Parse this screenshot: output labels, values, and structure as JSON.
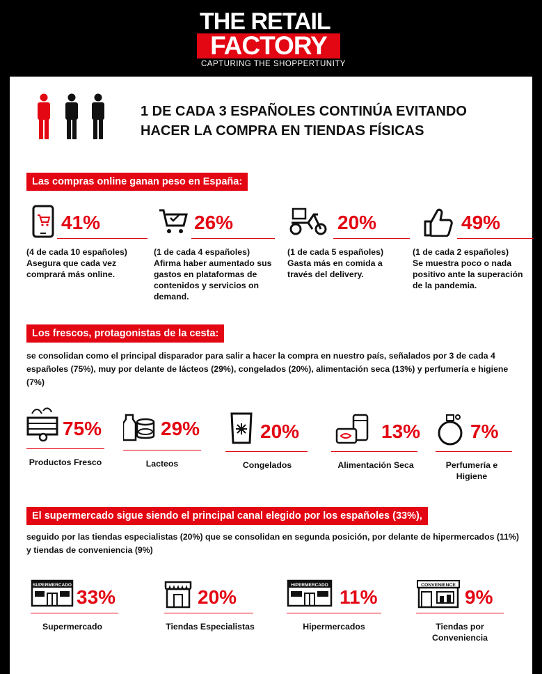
{
  "brand": {
    "line1": "THE RETAIL",
    "line2": "FACTORY",
    "tagline": "CAPTURING THE SHOPPERTUNITY"
  },
  "colors": {
    "accent": "#e30613",
    "dark": "#111111",
    "background": "#ffffff"
  },
  "headline": {
    "line1": "1 DE CADA 3 ESPAÑOLES CONTINÚA EVITANDO",
    "line2": "HACER LA COMPRA EN TIENDAS FÍSICAS",
    "icons": [
      "person-icon-red",
      "person-icon-black",
      "person-icon-black"
    ]
  },
  "online": {
    "title": "Las compras online ganan peso en España:",
    "stats": [
      {
        "icon": "smartphone-cart-icon",
        "pct": "41%",
        "sub": "(4 de cada 10 españoles)",
        "text": "Asegura que cada vez comprará más online."
      },
      {
        "icon": "shopping-cart-check-icon",
        "pct": "26%",
        "sub": "(1 de cada 4 españoles)",
        "text": "Afirma haber aumentado sus gastos en plataformas de contenidos y servicios on demand."
      },
      {
        "icon": "delivery-scooter-icon",
        "pct": "20%",
        "sub": "(1 de cada 5 españoles)",
        "text": "Gasta más en comida a través del delivery."
      },
      {
        "icon": "thumbs-up-icon",
        "pct": "49%",
        "sub": "(1 de cada 2 españoles)",
        "text": "Se muestra poco o nada positivo ante la superación de la pandemia."
      }
    ]
  },
  "fresh": {
    "title": "Los frescos, protagonistas de la cesta:",
    "paragraph": "se consolidan como el principal disparador para salir a hacer la compra en nuestro país, señalados por 3 de cada 4 españoles (75%), muy por delante de lácteos (29%), congelados (20%), alimentación seca (13%) y perfumería e higiene (7%)",
    "stats": [
      {
        "icon": "vegetable-crate-icon",
        "pct": "75%",
        "label": "Productos Fresco"
      },
      {
        "icon": "dairy-icon",
        "pct": "29%",
        "label": "Lacteos"
      },
      {
        "icon": "frozen-bag-icon",
        "pct": "20%",
        "label": "Congelados"
      },
      {
        "icon": "canned-food-icon",
        "pct": "13%",
        "label": "Alimentación Seca"
      },
      {
        "icon": "perfume-bottle-icon",
        "pct": "7%",
        "label": "Perfumería e Higiene"
      }
    ]
  },
  "channels": {
    "title": "El supermercado sigue siendo el principal canal elegido por los españoles (33%),",
    "paragraph": "seguido por las tiendas especialistas (20%) que se consolidan en segunda posición, por delante de hipermercados (11%) y tiendas de conveniencia (9%)",
    "stats": [
      {
        "icon": "supermarket-icon",
        "icon_text": "SUPERMERCADO",
        "pct": "33%",
        "label": "Supermercado"
      },
      {
        "icon": "specialist-store-icon",
        "icon_text": "",
        "pct": "20%",
        "label": "Tiendas Especialistas"
      },
      {
        "icon": "hypermarket-icon",
        "icon_text": "HIPERMERCADO",
        "pct": "11%",
        "label": "Hipermercados"
      },
      {
        "icon": "convenience-store-icon",
        "icon_text": "CONVENIENCE",
        "pct": "9%",
        "label": "Tiendas por Conveniencia"
      }
    ]
  }
}
